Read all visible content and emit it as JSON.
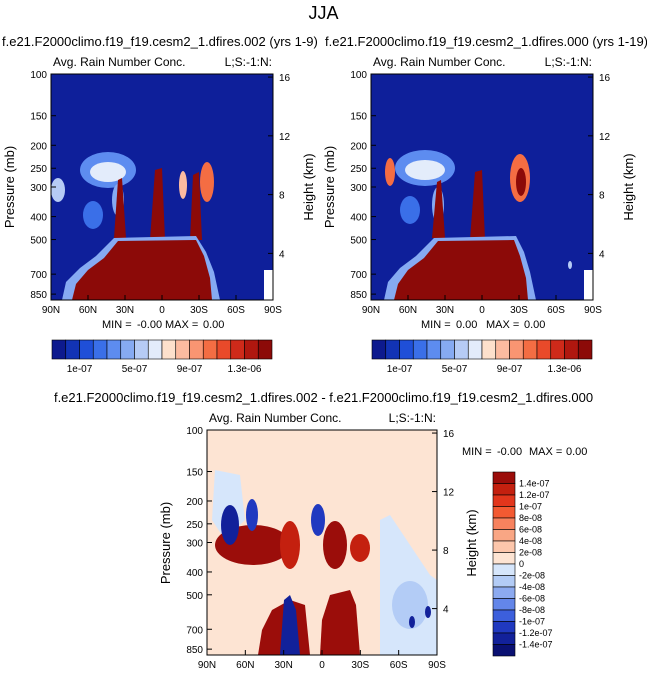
{
  "figure": {
    "title": "JJA",
    "bottom_title": "f.e21.F2000climo.f19_f19.cesm2_1.dfires.002 - f.e21.F2000climo.f19_f19.cesm2_1.dfires.000"
  },
  "chart_data": [
    {
      "type": "heatmap",
      "title": "f.e21.F2000climo.f19_f19.cesm2_1.dfires.002 (yrs 1-9)",
      "subtitle_left": "Avg. Rain Number Conc.",
      "subtitle_right": "L;S:-1:N:",
      "xlabel": "",
      "ylabel": "Pressure (mb)",
      "y2label": "Height (km)",
      "x_ticks": [
        "90N",
        "60N",
        "30N",
        "0",
        "30S",
        "60S",
        "90S"
      ],
      "y_ticks": [
        "100",
        "150",
        "200",
        "250",
        "300",
        "400",
        "500",
        "700",
        "850"
      ],
      "y2_ticks": [
        "16",
        "12",
        "8",
        "4"
      ],
      "min_label": "MIN =",
      "min_value": "-0.00",
      "max_label": "MAX =",
      "max_value": "0.00",
      "colorbar_labels": [
        "1e-07",
        "5e-07",
        "9e-07",
        "1.3e-06"
      ],
      "colorbar_colors": [
        "#0d1a8e",
        "#1233b5",
        "#1f4fd8",
        "#3a6fe8",
        "#5d8cf0",
        "#86aaf2",
        "#b6cbf5",
        "#e3ecfb",
        "#fde0cc",
        "#fcbba0",
        "#f99572",
        "#f46d43",
        "#e94a2a",
        "#cf2a1a",
        "#b0170f",
        "#8c0a08"
      ]
    },
    {
      "type": "heatmap",
      "title": "f.e21.F2000climo.f19_f19.cesm2_1.dfires.000 (yrs 1-19)",
      "subtitle_left": "Avg. Rain Number Conc.",
      "subtitle_right": "L;S:-1:N:",
      "xlabel": "",
      "ylabel": "Pressure (mb)",
      "y2label": "Height (km)",
      "x_ticks": [
        "90N",
        "60N",
        "30N",
        "0",
        "30S",
        "60S",
        "90S"
      ],
      "y_ticks": [
        "100",
        "150",
        "200",
        "250",
        "300",
        "400",
        "500",
        "700",
        "850"
      ],
      "y2_ticks": [
        "16",
        "12",
        "8",
        "4"
      ],
      "min_label": "MIN =",
      "min_value": "0.00",
      "max_label": "MAX =",
      "max_value": "0.00",
      "colorbar_labels": [
        "1e-07",
        "5e-07",
        "9e-07",
        "1.3e-06"
      ],
      "colorbar_colors": [
        "#0d1a8e",
        "#1233b5",
        "#1f4fd8",
        "#3a6fe8",
        "#5d8cf0",
        "#86aaf2",
        "#b6cbf5",
        "#e3ecfb",
        "#fde0cc",
        "#fcbba0",
        "#f99572",
        "#f46d43",
        "#e94a2a",
        "#cf2a1a",
        "#b0170f",
        "#8c0a08"
      ]
    },
    {
      "type": "heatmap",
      "title": "",
      "subtitle_left": "Avg. Rain Number Conc.",
      "subtitle_right": "L;S:-1:N:",
      "xlabel": "",
      "ylabel": "Pressure (mb)",
      "y2label": "Height (km)",
      "x_ticks": [
        "90N",
        "60N",
        "30N",
        "0",
        "30S",
        "60S",
        "90S"
      ],
      "y_ticks": [
        "100",
        "150",
        "200",
        "250",
        "300",
        "400",
        "500",
        "700",
        "850"
      ],
      "y2_ticks": [
        "16",
        "12",
        "8",
        "4"
      ],
      "min_label": "MIN =",
      "min_value": "-0.00",
      "max_label": "MAX =",
      "max_value": "0.00",
      "colorbar_labels": [
        "1.4e-07",
        "1.2e-07",
        "1e-07",
        "8e-08",
        "6e-08",
        "4e-08",
        "2e-08",
        "0",
        "-2e-08",
        "-4e-08",
        "-6e-08",
        "-8e-08",
        "-1e-07",
        "-1.2e-07",
        "-1.4e-07"
      ],
      "colorbar_colors": [
        "#9b0d0a",
        "#c4200f",
        "#e2361c",
        "#f35a32",
        "#f7825e",
        "#f9a684",
        "#fcc6ab",
        "#fde4d3",
        "#d6e6fb",
        "#b3ccf6",
        "#8caaf0",
        "#6386e9",
        "#3c5fdc",
        "#2039c0",
        "#12219a",
        "#0a1072"
      ]
    }
  ]
}
